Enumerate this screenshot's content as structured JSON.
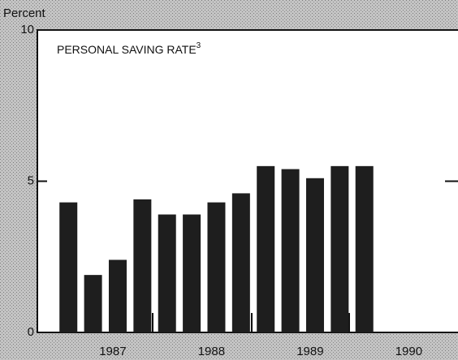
{
  "chart_data": {
    "type": "bar",
    "title": "PERSONAL SAVING RATE",
    "title_note": "3",
    "y_label": "Percent",
    "groups": [
      "1987",
      "1988",
      "1989",
      "1990"
    ],
    "values": [
      4.3,
      1.9,
      2.4,
      4.4,
      3.9,
      3.9,
      4.3,
      4.6,
      5.5,
      5.4,
      5.1,
      5.5,
      5.5
    ],
    "color": "#1e1e1e",
    "ylim": [
      0,
      10
    ],
    "yticks": [
      0,
      5,
      10
    ]
  }
}
